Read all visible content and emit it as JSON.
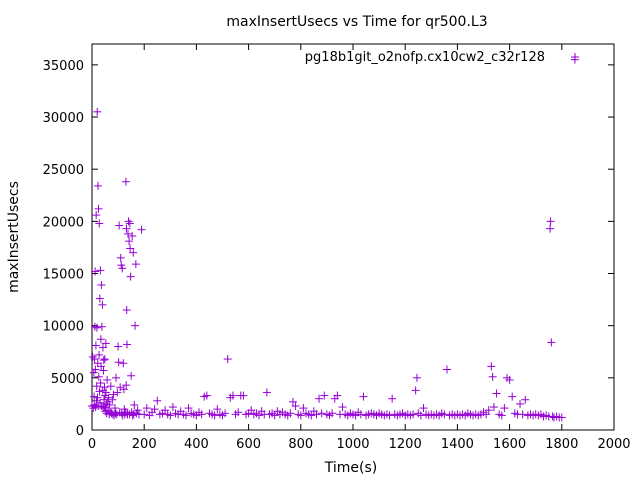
{
  "chart_data": {
    "type": "scatter",
    "title": "maxInsertUsecs vs Time for qr500.L3",
    "xlabel": "Time(s)",
    "ylabel": "maxInsertUsecs",
    "xlim": [
      0,
      2000
    ],
    "ylim": [
      0,
      37000
    ],
    "x_ticks": [
      0,
      200,
      400,
      600,
      800,
      1000,
      1200,
      1400,
      1600,
      1800,
      2000
    ],
    "y_ticks": [
      0,
      5000,
      10000,
      15000,
      20000,
      25000,
      30000,
      35000
    ],
    "x_tick_labels": [
      "0",
      "200",
      "400",
      "600",
      "800",
      "1000",
      "1200",
      "1400",
      "1600",
      "1800",
      "2000"
    ],
    "y_tick_labels": [
      "0",
      "5000",
      "10000",
      "15000",
      "20000",
      "25000",
      "30000",
      "35000"
    ],
    "grid": false,
    "legend_position": "top-right",
    "marker": "+",
    "series": [
      {
        "name": "pg18b1git_o2nofp.cx10cw2_c32r128",
        "color": "#9400d3",
        "points": [
          [
            0,
            2300
          ],
          [
            3,
            7000
          ],
          [
            5,
            2100
          ],
          [
            7,
            5500
          ],
          [
            8,
            3200
          ],
          [
            9,
            2400
          ],
          [
            10,
            6800
          ],
          [
            11,
            9900
          ],
          [
            12,
            15200
          ],
          [
            13,
            5800
          ],
          [
            14,
            2200
          ],
          [
            15,
            8100
          ],
          [
            16,
            20600
          ],
          [
            17,
            2800
          ],
          [
            18,
            4200
          ],
          [
            19,
            9800
          ],
          [
            20,
            30500
          ],
          [
            21,
            3100
          ],
          [
            22,
            6400
          ],
          [
            23,
            23400
          ],
          [
            24,
            2300
          ],
          [
            25,
            21200
          ],
          [
            26,
            5100
          ],
          [
            27,
            7200
          ],
          [
            28,
            19800
          ],
          [
            29,
            3700
          ],
          [
            30,
            12600
          ],
          [
            31,
            2600
          ],
          [
            32,
            15300
          ],
          [
            33,
            4500
          ],
          [
            34,
            8700
          ],
          [
            35,
            6100
          ],
          [
            36,
            13900
          ],
          [
            37,
            2300
          ],
          [
            38,
            9900
          ],
          [
            40,
            12000
          ],
          [
            41,
            3800
          ],
          [
            42,
            7900
          ],
          [
            43,
            2100
          ],
          [
            44,
            5700
          ],
          [
            45,
            6700
          ],
          [
            46,
            2900
          ],
          [
            47,
            2200
          ],
          [
            48,
            4100
          ],
          [
            49,
            6800
          ],
          [
            50,
            3300
          ],
          [
            51,
            1800
          ],
          [
            52,
            2200
          ],
          [
            53,
            8300
          ],
          [
            54,
            3600
          ],
          [
            55,
            2500
          ],
          [
            56,
            1600
          ],
          [
            58,
            4800
          ],
          [
            60,
            2700
          ],
          [
            62,
            1900
          ],
          [
            64,
            3100
          ],
          [
            66,
            1500
          ],
          [
            68,
            2400
          ],
          [
            70,
            1700
          ],
          [
            72,
            4200
          ],
          [
            75,
            1600
          ],
          [
            78,
            2900
          ],
          [
            80,
            1500
          ],
          [
            82,
            3400
          ],
          [
            85,
            1400
          ],
          [
            88,
            2100
          ],
          [
            90,
            1600
          ],
          [
            92,
            5000
          ],
          [
            95,
            1500
          ],
          [
            97,
            3600
          ],
          [
            100,
            8000
          ],
          [
            102,
            6500
          ],
          [
            104,
            19600
          ],
          [
            106,
            1700
          ],
          [
            108,
            4100
          ],
          [
            110,
            16500
          ],
          [
            112,
            15800
          ],
          [
            114,
            1600
          ],
          [
            116,
            15500
          ],
          [
            118,
            1400
          ],
          [
            120,
            6400
          ],
          [
            122,
            3900
          ],
          [
            124,
            2000
          ],
          [
            126,
            1500
          ],
          [
            128,
            1700
          ],
          [
            130,
            23800
          ],
          [
            131,
            4300
          ],
          [
            132,
            19300
          ],
          [
            133,
            11500
          ],
          [
            134,
            8200
          ],
          [
            135,
            1600
          ],
          [
            136,
            1500
          ],
          [
            138,
            18800
          ],
          [
            140,
            20000
          ],
          [
            142,
            18100
          ],
          [
            144,
            1500
          ],
          [
            145,
            19800
          ],
          [
            146,
            17400
          ],
          [
            148,
            14700
          ],
          [
            150,
            5200
          ],
          [
            152,
            1700
          ],
          [
            154,
            18600
          ],
          [
            156,
            1400
          ],
          [
            158,
            17000
          ],
          [
            160,
            1500
          ],
          [
            162,
            2400
          ],
          [
            165,
            10000
          ],
          [
            168,
            15900
          ],
          [
            170,
            1600
          ],
          [
            175,
            1900
          ],
          [
            180,
            1500
          ],
          [
            190,
            19200
          ],
          [
            200,
            1500
          ],
          [
            210,
            2100
          ],
          [
            220,
            1400
          ],
          [
            230,
            1700
          ],
          [
            240,
            2000
          ],
          [
            250,
            2800
          ],
          [
            260,
            1500
          ],
          [
            270,
            1600
          ],
          [
            280,
            1900
          ],
          [
            290,
            1500
          ],
          [
            300,
            1400
          ],
          [
            310,
            2200
          ],
          [
            320,
            1600
          ],
          [
            330,
            1500
          ],
          [
            340,
            1800
          ],
          [
            350,
            1500
          ],
          [
            360,
            1400
          ],
          [
            370,
            2100
          ],
          [
            380,
            1600
          ],
          [
            390,
            1500
          ],
          [
            400,
            1400
          ],
          [
            410,
            1700
          ],
          [
            420,
            1500
          ],
          [
            430,
            3200
          ],
          [
            440,
            3300
          ],
          [
            450,
            1600
          ],
          [
            460,
            1500
          ],
          [
            470,
            1400
          ],
          [
            480,
            2000
          ],
          [
            490,
            1500
          ],
          [
            500,
            1400
          ],
          [
            510,
            1600
          ],
          [
            520,
            6800
          ],
          [
            530,
            3100
          ],
          [
            540,
            3300
          ],
          [
            550,
            1500
          ],
          [
            560,
            1700
          ],
          [
            570,
            3300
          ],
          [
            580,
            3300
          ],
          [
            590,
            1500
          ],
          [
            600,
            1600
          ],
          [
            610,
            1900
          ],
          [
            620,
            1500
          ],
          [
            630,
            1600
          ],
          [
            640,
            1400
          ],
          [
            650,
            1800
          ],
          [
            660,
            1500
          ],
          [
            670,
            3600
          ],
          [
            680,
            1500
          ],
          [
            690,
            1600
          ],
          [
            700,
            1400
          ],
          [
            710,
            1800
          ],
          [
            720,
            1500
          ],
          [
            730,
            1700
          ],
          [
            740,
            1500
          ],
          [
            750,
            1400
          ],
          [
            760,
            1600
          ],
          [
            770,
            2700
          ],
          [
            780,
            2300
          ],
          [
            790,
            1500
          ],
          [
            800,
            1400
          ],
          [
            810,
            2100
          ],
          [
            820,
            1600
          ],
          [
            830,
            1500
          ],
          [
            840,
            1400
          ],
          [
            850,
            1800
          ],
          [
            860,
            1500
          ],
          [
            870,
            3000
          ],
          [
            880,
            1600
          ],
          [
            890,
            3300
          ],
          [
            900,
            1500
          ],
          [
            910,
            1400
          ],
          [
            920,
            1600
          ],
          [
            930,
            3000
          ],
          [
            940,
            3300
          ],
          [
            950,
            1500
          ],
          [
            960,
            2200
          ],
          [
            970,
            1500
          ],
          [
            980,
            1400
          ],
          [
            990,
            1600
          ],
          [
            1000,
            1500
          ],
          [
            1010,
            1400
          ],
          [
            1020,
            1700
          ],
          [
            1030,
            1500
          ],
          [
            1040,
            3200
          ],
          [
            1050,
            1400
          ],
          [
            1060,
            1500
          ],
          [
            1070,
            1600
          ],
          [
            1080,
            1500
          ],
          [
            1090,
            1400
          ],
          [
            1100,
            1600
          ],
          [
            1110,
            1500
          ],
          [
            1120,
            1400
          ],
          [
            1130,
            1500
          ],
          [
            1140,
            1400
          ],
          [
            1150,
            3000
          ],
          [
            1160,
            1500
          ],
          [
            1170,
            1400
          ],
          [
            1180,
            1500
          ],
          [
            1190,
            1600
          ],
          [
            1200,
            1400
          ],
          [
            1210,
            1500
          ],
          [
            1220,
            1400
          ],
          [
            1230,
            1500
          ],
          [
            1240,
            3800
          ],
          [
            1245,
            5000
          ],
          [
            1250,
            1600
          ],
          [
            1260,
            1400
          ],
          [
            1270,
            2100
          ],
          [
            1280,
            1500
          ],
          [
            1290,
            1400
          ],
          [
            1300,
            1500
          ],
          [
            1310,
            1400
          ],
          [
            1320,
            1500
          ],
          [
            1330,
            1400
          ],
          [
            1340,
            1600
          ],
          [
            1350,
            1500
          ],
          [
            1360,
            5800
          ],
          [
            1370,
            1400
          ],
          [
            1380,
            1500
          ],
          [
            1390,
            1400
          ],
          [
            1400,
            1500
          ],
          [
            1410,
            1400
          ],
          [
            1420,
            1500
          ],
          [
            1430,
            1400
          ],
          [
            1440,
            1600
          ],
          [
            1450,
            1500
          ],
          [
            1460,
            1400
          ],
          [
            1470,
            1500
          ],
          [
            1480,
            1400
          ],
          [
            1490,
            1500
          ],
          [
            1500,
            1700
          ],
          [
            1510,
            1500
          ],
          [
            1520,
            1900
          ],
          [
            1530,
            6100
          ],
          [
            1535,
            5100
          ],
          [
            1540,
            2200
          ],
          [
            1550,
            3500
          ],
          [
            1560,
            1500
          ],
          [
            1570,
            1400
          ],
          [
            1580,
            2100
          ],
          [
            1590,
            5000
          ],
          [
            1600,
            4800
          ],
          [
            1610,
            3200
          ],
          [
            1620,
            1600
          ],
          [
            1630,
            1500
          ],
          [
            1640,
            2500
          ],
          [
            1650,
            1500
          ],
          [
            1660,
            2900
          ],
          [
            1670,
            1400
          ],
          [
            1680,
            1500
          ],
          [
            1690,
            1400
          ],
          [
            1700,
            1500
          ],
          [
            1710,
            1400
          ],
          [
            1720,
            1500
          ],
          [
            1730,
            1300
          ],
          [
            1740,
            1400
          ],
          [
            1750,
            1300
          ],
          [
            1755,
            19300
          ],
          [
            1757,
            20000
          ],
          [
            1760,
            8400
          ],
          [
            1765,
            1300
          ],
          [
            1770,
            1200
          ],
          [
            1780,
            1300
          ],
          [
            1790,
            1200
          ],
          [
            1800,
            1200
          ],
          [
            1850,
            35500
          ]
        ]
      }
    ]
  }
}
